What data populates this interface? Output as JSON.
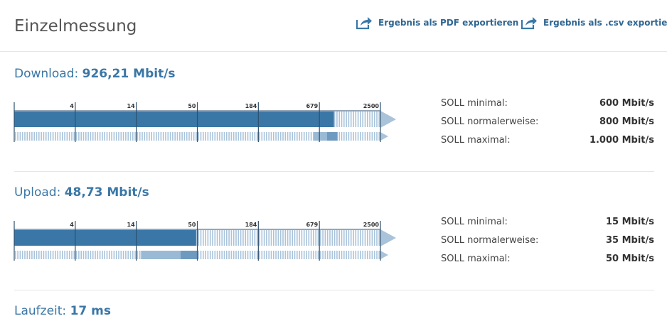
{
  "header": {
    "title": "Einzelmessung",
    "export_pdf_label": "Ergebnis als PDF exportieren",
    "export_csv_label": "Ergebnis als .csv exportieren"
  },
  "colors": {
    "accent": "#3a77a6",
    "bar_fill": "#3a77a6",
    "bar_track": "#a9c3da",
    "range_band": "#9ab9d4",
    "range_band_dark": "#6f9ac0"
  },
  "scale_ticks": [
    "4",
    "14",
    "50",
    "184",
    "679",
    "2500"
  ],
  "download": {
    "label": "Download:",
    "value": "926,21 Mbit/s",
    "fill_value_mbit": 926.21,
    "soll_min_mbit": 600,
    "soll_normal_mbit": 800,
    "soll_max_mbit": 1000,
    "soll": [
      {
        "label": "SOLL minimal:",
        "value": "600 Mbit/s"
      },
      {
        "label": "SOLL normalerweise:",
        "value": "800 Mbit/s"
      },
      {
        "label": "SOLL maximal:",
        "value": "1.000 Mbit/s"
      }
    ]
  },
  "upload": {
    "label": "Upload:",
    "value": "48,73 Mbit/s",
    "fill_value_mbit": 48.73,
    "soll_min_mbit": 15,
    "soll_normal_mbit": 35,
    "soll_max_mbit": 50,
    "soll": [
      {
        "label": "SOLL minimal:",
        "value": "15 Mbit/s"
      },
      {
        "label": "SOLL normalerweise:",
        "value": "35 Mbit/s"
      },
      {
        "label": "SOLL maximal:",
        "value": "50 Mbit/s"
      }
    ]
  },
  "latency": {
    "label": "Laufzeit:",
    "value": "17 ms"
  }
}
